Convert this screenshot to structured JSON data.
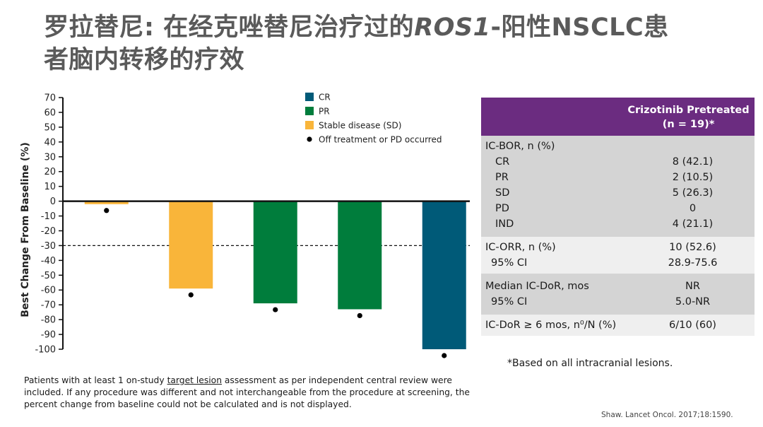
{
  "title": {
    "line1_a": "罗拉替尼: 在经克唑替尼治疗过的",
    "line1_gene": "ROS1",
    "line1_b": "-阳性NSCLC患",
    "line2": "者脑内转移的疗效"
  },
  "chart_data": {
    "type": "bar",
    "ylabel": "Best Change From Baseline (%)",
    "ylim": [
      -100,
      70
    ],
    "yticks": [
      70,
      60,
      50,
      40,
      30,
      20,
      10,
      0,
      -10,
      -20,
      -30,
      -40,
      -50,
      -60,
      -70,
      -80,
      -90,
      -100
    ],
    "reference_line": -30,
    "values": [
      -2,
      -59,
      -69,
      -73,
      -100
    ],
    "response": [
      "SD",
      "SD",
      "PR",
      "PR",
      "CR"
    ],
    "off_treatment": [
      true,
      true,
      true,
      true,
      true
    ],
    "colors": {
      "CR": "#005a78",
      "PR": "#007d3c",
      "SD": "#f9b53a"
    },
    "legend": [
      {
        "key": "CR",
        "label": "CR",
        "swatch": "#005a78"
      },
      {
        "key": "PR",
        "label": "PR",
        "swatch": "#007d3c"
      },
      {
        "key": "SD",
        "label": "Stable disease (SD)",
        "swatch": "#f9b53a"
      },
      {
        "key": "DOT",
        "label": "Off treatment or PD occurred",
        "swatch": "dot"
      }
    ],
    "legend_position": "top-center",
    "grid": false
  },
  "table": {
    "header_col": "Crizotinib Pretreated",
    "header_n": "(n = 19)*",
    "header_color": "#6b2c80",
    "sections": [
      {
        "shade": "dark",
        "rows": [
          {
            "label": "IC-BOR, n (%)",
            "value": "",
            "indent": 0
          },
          {
            "label": "CR",
            "value": "8 (42.1)",
            "indent": 1
          },
          {
            "label": "PR",
            "value": "2 (10.5)",
            "indent": 1
          },
          {
            "label": "SD",
            "value": "5 (26.3)",
            "indent": 1
          },
          {
            "label": "PD",
            "value": "0",
            "indent": 1
          },
          {
            "label": "IND",
            "value": "4 (21.1)",
            "indent": 1
          }
        ]
      },
      {
        "shade": "light",
        "rows": [
          {
            "label": "IC-ORR, n (%)",
            "value": "10 (52.6)",
            "indent": 0
          },
          {
            "label": "95% CI",
            "value": "28.9-75.6",
            "indent": 2
          }
        ]
      },
      {
        "shade": "dark",
        "rows": [
          {
            "label": "Median IC-DoR, mos",
            "value": "NR",
            "indent": 0
          },
          {
            "label": "95% CI",
            "value": "5.0-NR",
            "indent": 2
          }
        ]
      },
      {
        "shade": "light",
        "rows": [
          {
            "label": "IC-DoR ≥ 6 mos, n⁰/N (%)",
            "value": "6/10 (60)",
            "indent": 0
          }
        ]
      }
    ]
  },
  "footnote": "*Based on all intracranial lesions.",
  "bottom_note": {
    "part1": "Patients with at least 1 on-study ",
    "underlined": "target lesion",
    "part2": " assessment as per independent central review were included. If any procedure was different and not interchangeable from the procedure at screening, the percent change from baseline could not be calculated and is not displayed."
  },
  "citation": "Shaw. Lancet Oncol. 2017;18:1590."
}
